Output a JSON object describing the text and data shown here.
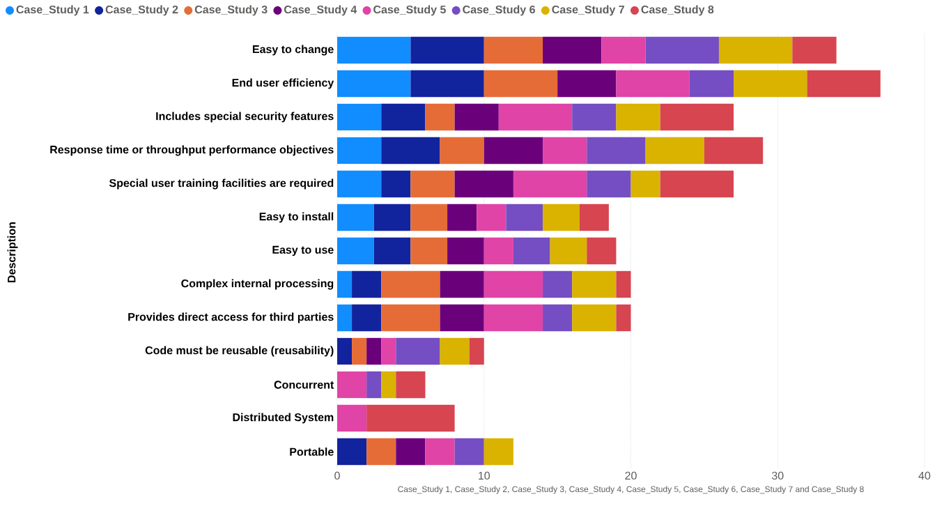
{
  "chart_data": {
    "type": "bar",
    "orientation": "horizontal",
    "stacked": true,
    "xlabel": "Case_Study 1, Case_Study 2, Case_Study 3, Case_Study 4, Case_Study 5, Case_Study 6, Case_Study 7 and Case_Study 8",
    "ylabel": "Description",
    "categories": [
      "Easy to change",
      "End user efficiency",
      "Includes special security features",
      "Response time or throughput performance objectives",
      "Special user training facilities are required",
      "Easy to install",
      "Easy to use",
      "Complex internal processing",
      "Provides direct access for third parties",
      "Code must be reusable (reusability)",
      "Concurrent",
      "Distributed System",
      "Portable"
    ],
    "series": [
      {
        "name": "Case_Study 1",
        "color": "#118dff",
        "values": [
          5,
          5,
          3,
          3,
          3,
          2.5,
          2.5,
          1,
          1,
          null,
          null,
          null,
          null
        ]
      },
      {
        "name": "Case_Study 2",
        "color": "#12239e",
        "values": [
          5,
          5,
          3,
          4,
          2,
          2.5,
          2.5,
          2,
          2,
          1,
          null,
          null,
          2
        ]
      },
      {
        "name": "Case_Study 3",
        "color": "#e66c37",
        "values": [
          4,
          5,
          2,
          3,
          3,
          2.5,
          2.5,
          4,
          4,
          1,
          null,
          null,
          2
        ]
      },
      {
        "name": "Case_Study 4",
        "color": "#6b007b",
        "values": [
          4,
          4,
          3,
          4,
          4,
          2,
          2.5,
          3,
          3,
          1,
          null,
          null,
          2
        ]
      },
      {
        "name": "Case_Study 5",
        "color": "#e044a7",
        "values": [
          3,
          5,
          5,
          3,
          5,
          2,
          2,
          4,
          4,
          1,
          2,
          2,
          2
        ]
      },
      {
        "name": "Case_Study 6",
        "color": "#744ec2",
        "values": [
          5,
          3,
          3,
          4,
          3,
          2.5,
          2.5,
          2,
          2,
          3,
          1,
          null,
          2
        ]
      },
      {
        "name": "Case_Study 7",
        "color": "#d9b300",
        "values": [
          5,
          5,
          3,
          4,
          2,
          2.5,
          2.5,
          3,
          3,
          2,
          1,
          null,
          2
        ]
      },
      {
        "name": "Case_Study 8",
        "color": "#d64550",
        "values": [
          3,
          5,
          5,
          4,
          5,
          2,
          2,
          1,
          1,
          1,
          2,
          6,
          null
        ]
      }
    ],
    "xlim": [
      0,
      40
    ],
    "xticks": [
      0,
      10,
      20,
      30,
      40
    ],
    "grid": "x",
    "legend": "top left"
  }
}
